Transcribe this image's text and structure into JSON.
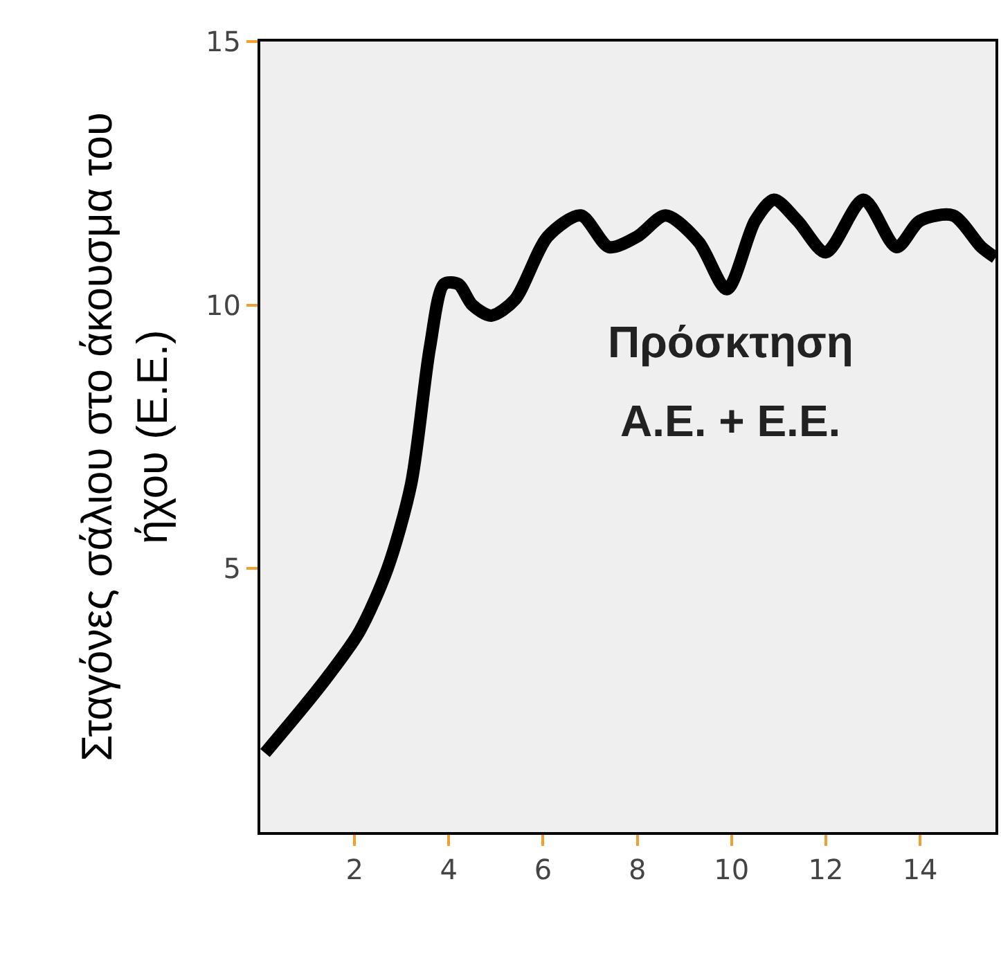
{
  "chart_data": {
    "type": "line",
    "ylabel": "Σταγόνες σάλιου στο άκουσμα του\nήχου (Ε.Ε.)",
    "annotations": [
      "Πρόσκτηση",
      "Α.Ε. + Ε.Ε."
    ],
    "x": [
      0.1,
      1.3,
      2.1,
      2.7,
      3.2,
      3.6,
      3.9,
      4.2,
      4.5,
      4.9,
      5.4,
      6.1,
      6.8,
      7.4,
      8.0,
      8.6,
      9.3,
      9.9,
      10.5,
      10.9,
      11.4,
      12.0,
      12.8,
      13.5,
      14.0,
      14.7,
      15.3,
      15.6
    ],
    "series": [
      {
        "color": "#000000",
        "values": [
          1.5,
          2.8,
          3.8,
          5.0,
          6.6,
          9.2,
          10.4,
          10.4,
          10.0,
          9.8,
          10.1,
          11.3,
          11.7,
          11.1,
          11.3,
          11.7,
          11.2,
          10.3,
          11.6,
          12.0,
          11.6,
          11.0,
          12.0,
          11.1,
          11.6,
          11.7,
          11.1,
          10.9
        ]
      }
    ],
    "xlim": [
      0,
      15.6
    ],
    "ylim": [
      0,
      15
    ],
    "xticks": [
      2,
      4,
      6,
      8,
      10,
      12,
      14
    ],
    "yticks": [
      5,
      10,
      15
    ],
    "marker": "none",
    "line_style": "solid"
  }
}
